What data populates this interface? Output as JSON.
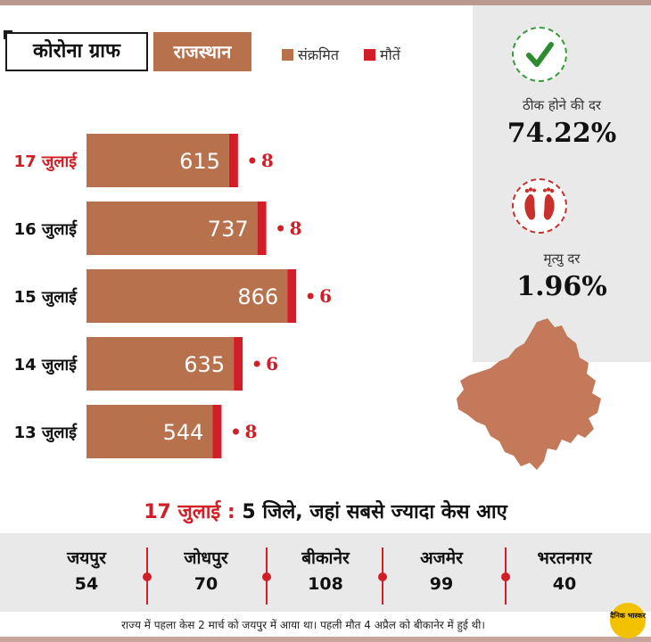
{
  "header": {
    "title": "कोरोना ग्राफ",
    "state": "राजस्थान",
    "legend": [
      {
        "label": "संक्रमित",
        "color": "#b7714d"
      },
      {
        "label": "मौतें",
        "color": "#d21f27"
      }
    ]
  },
  "chart_data": {
    "type": "bar",
    "orientation": "horizontal",
    "stacked": true,
    "categories": [
      "17 जुलाई",
      "16 जुलाई",
      "15 जुलाई",
      "14 जुलाई",
      "13 जुलाई"
    ],
    "series": [
      {
        "name": "संक्रमित",
        "values": [
          615,
          737,
          866,
          635,
          544
        ],
        "color": "#b7714d"
      },
      {
        "name": "मौतें",
        "values": [
          8,
          8,
          6,
          6,
          8
        ],
        "color": "#d21f27"
      }
    ],
    "highlight_category": "17 जुलाई",
    "highlight_color": "#d21f27",
    "grid": false
  },
  "stats": {
    "recovery_label": "ठीक होने की दर",
    "recovery_value": "74.22%",
    "recovery_icon": "check-icon",
    "death_label": "मृत्यु दर",
    "death_value": "1.96%",
    "death_icon": "feet-icon",
    "map_icon": "rajasthan-map-icon"
  },
  "districts": {
    "date": "17 जुलाई",
    "separator": ":",
    "heading": "5 जिले, जहां सबसे ज्यादा केस आए",
    "items": [
      {
        "name": "जयपुर",
        "value": "54"
      },
      {
        "name": "जोधपुर",
        "value": "70"
      },
      {
        "name": "बीकानेर",
        "value": "108"
      },
      {
        "name": "अजमेर",
        "value": "99"
      },
      {
        "name": "भरतनगर",
        "value": "40"
      }
    ]
  },
  "footer": {
    "note": "राज्य में पहला केस 2 मार्च को जयपुर में आया था। पहली मौत 4 अप्रैल को बीकानेर में हुई थी।",
    "logo_text": "दैनिक भास्कर"
  }
}
